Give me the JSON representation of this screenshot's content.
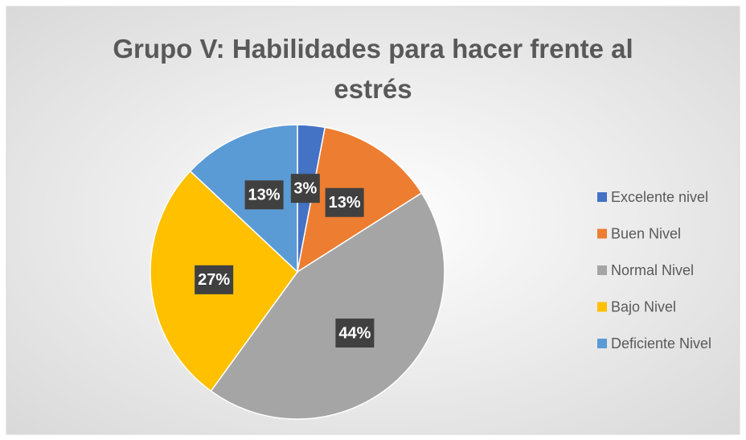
{
  "chart_data": {
    "type": "pie",
    "title": "Grupo V: Habilidades para hacer frente al estrés",
    "categories": [
      "Excelente nivel",
      "Buen Nivel",
      "Normal Nivel",
      "Bajo Nivel",
      "Deficiente Nivel"
    ],
    "values": [
      3,
      13,
      44,
      27,
      13
    ],
    "value_labels": [
      "3%",
      "13%",
      "44%",
      "27%",
      "13%"
    ],
    "colors": [
      "#4472c4",
      "#ed7d31",
      "#a5a5a5",
      "#ffc000",
      "#5b9bd5"
    ],
    "legend": "right"
  }
}
